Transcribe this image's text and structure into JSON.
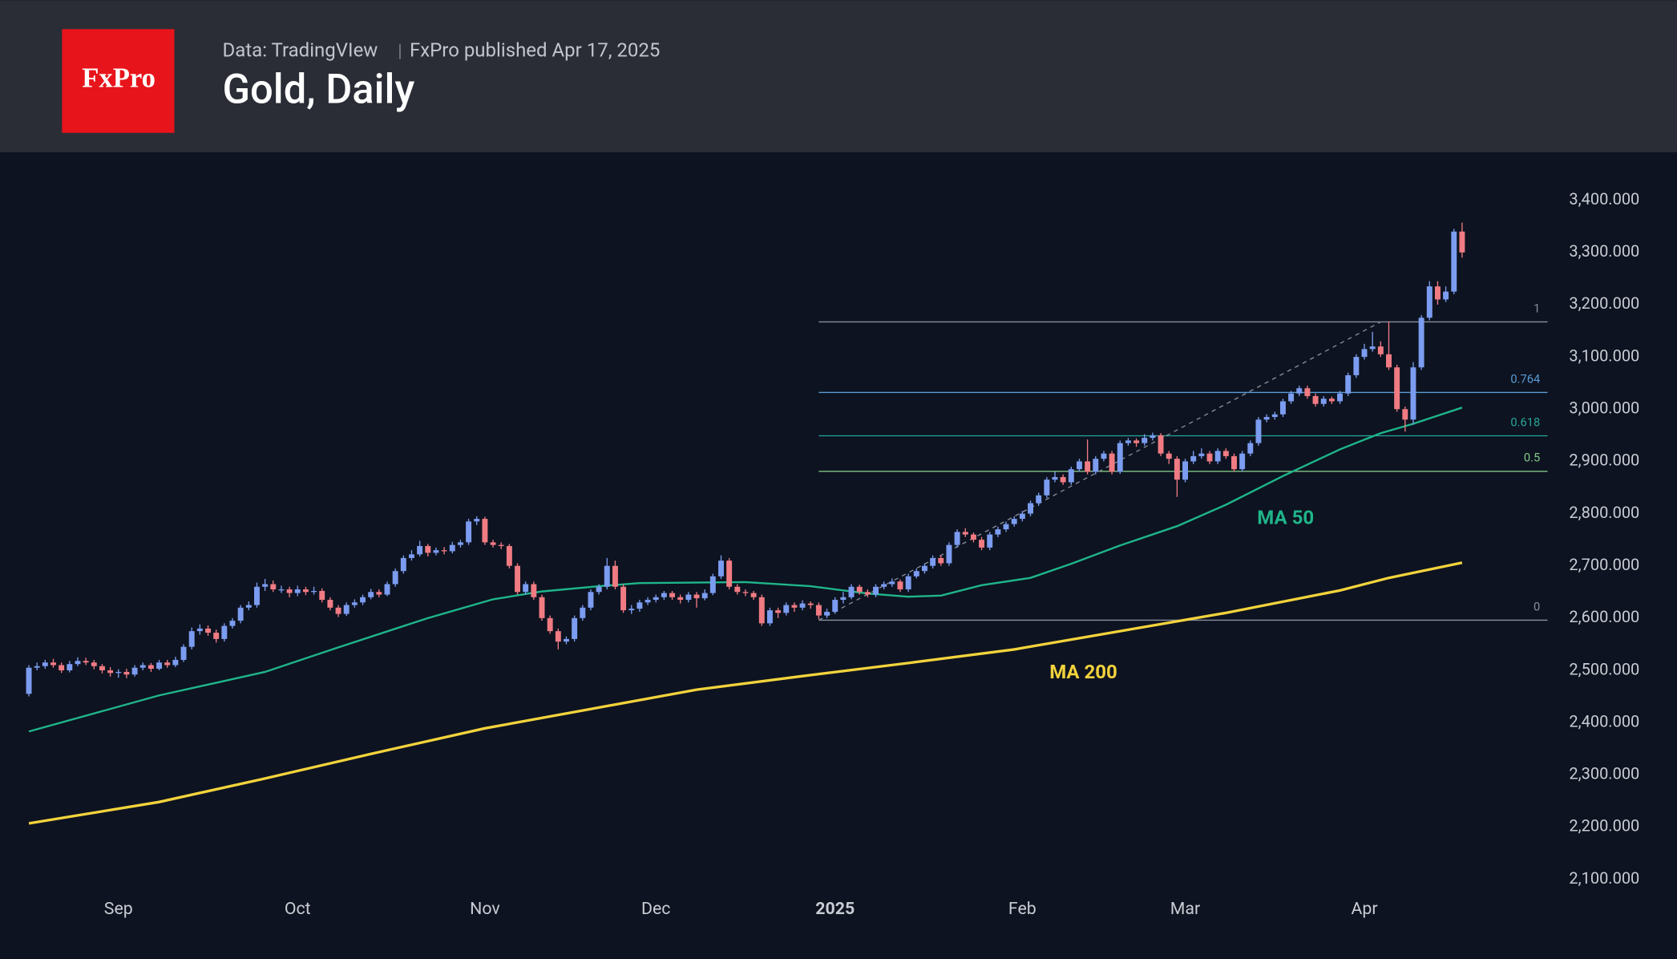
{
  "header": {
    "logo": "FxPro",
    "source": "Data: TradingVIew",
    "published": "FxPro published Apr 17, 2025",
    "title": "Gold, Daily"
  },
  "chart_data": {
    "type": "candlestick",
    "up_color": "#7b9cf0",
    "down_color": "#f07b83",
    "ylim": [
      2040,
      3492
    ],
    "yticks": [
      {
        "value": 2100,
        "label": "2,100.000"
      },
      {
        "value": 2200,
        "label": "2,200.000"
      },
      {
        "value": 2300,
        "label": "2,300.000"
      },
      {
        "value": 2400,
        "label": "2,400.000"
      },
      {
        "value": 2500,
        "label": "2,500.000"
      },
      {
        "value": 2600,
        "label": "2,600.000"
      },
      {
        "value": 2700,
        "label": "2,700.000"
      },
      {
        "value": 2800,
        "label": "2,800.000"
      },
      {
        "value": 2900,
        "label": "2,900.000"
      },
      {
        "value": 3000,
        "label": "3,000.000"
      },
      {
        "value": 3100,
        "label": "3,100.000"
      },
      {
        "value": 3200,
        "label": "3,200.000"
      },
      {
        "value": 3300,
        "label": "3,300.000"
      },
      {
        "value": 3400,
        "label": "3,400.000"
      }
    ],
    "xticks": [
      {
        "value": 11,
        "label": "Sep"
      },
      {
        "value": 33,
        "label": "Oct"
      },
      {
        "value": 56,
        "label": "Nov"
      },
      {
        "value": 77,
        "label": "Dec"
      },
      {
        "value": 99,
        "label": "2025"
      },
      {
        "value": 122,
        "label": "Feb"
      },
      {
        "value": 142,
        "label": "Mar"
      },
      {
        "value": 164,
        "label": "Apr"
      }
    ],
    "candles": [
      [
        2455,
        2510,
        2450,
        2505
      ],
      [
        2505,
        2515,
        2500,
        2508
      ],
      [
        2508,
        2520,
        2503,
        2515
      ],
      [
        2515,
        2522,
        2505,
        2510
      ],
      [
        2510,
        2515,
        2495,
        2500
      ],
      [
        2500,
        2518,
        2496,
        2512
      ],
      [
        2512,
        2525,
        2508,
        2518
      ],
      [
        2518,
        2524,
        2510,
        2515
      ],
      [
        2515,
        2520,
        2502,
        2508
      ],
      [
        2508,
        2512,
        2494,
        2500
      ],
      [
        2500,
        2506,
        2488,
        2495
      ],
      [
        2495,
        2502,
        2486,
        2497
      ],
      [
        2497,
        2503,
        2485,
        2492
      ],
      [
        2492,
        2510,
        2488,
        2505
      ],
      [
        2505,
        2515,
        2500,
        2510
      ],
      [
        2510,
        2514,
        2497,
        2503
      ],
      [
        2503,
        2520,
        2500,
        2515
      ],
      [
        2515,
        2520,
        2505,
        2510
      ],
      [
        2510,
        2526,
        2506,
        2520
      ],
      [
        2520,
        2550,
        2516,
        2545
      ],
      [
        2545,
        2582,
        2540,
        2575
      ],
      [
        2575,
        2588,
        2568,
        2580
      ],
      [
        2580,
        2586,
        2566,
        2572
      ],
      [
        2572,
        2578,
        2553,
        2560
      ],
      [
        2560,
        2590,
        2555,
        2585
      ],
      [
        2585,
        2600,
        2580,
        2595
      ],
      [
        2595,
        2625,
        2590,
        2620
      ],
      [
        2620,
        2632,
        2615,
        2625
      ],
      [
        2625,
        2668,
        2620,
        2660
      ],
      [
        2660,
        2675,
        2652,
        2665
      ],
      [
        2665,
        2672,
        2650,
        2655
      ],
      [
        2655,
        2662,
        2648,
        2655
      ],
      [
        2655,
        2660,
        2640,
        2648
      ],
      [
        2648,
        2662,
        2642,
        2655
      ],
      [
        2655,
        2660,
        2644,
        2650
      ],
      [
        2650,
        2660,
        2645,
        2652
      ],
      [
        2652,
        2657,
        2630,
        2635
      ],
      [
        2635,
        2640,
        2615,
        2620
      ],
      [
        2620,
        2625,
        2602,
        2608
      ],
      [
        2608,
        2630,
        2604,
        2625
      ],
      [
        2625,
        2636,
        2620,
        2630
      ],
      [
        2630,
        2645,
        2625,
        2640
      ],
      [
        2640,
        2656,
        2636,
        2650
      ],
      [
        2650,
        2655,
        2640,
        2645
      ],
      [
        2645,
        2670,
        2642,
        2665
      ],
      [
        2665,
        2695,
        2660,
        2690
      ],
      [
        2690,
        2720,
        2685,
        2715
      ],
      [
        2715,
        2730,
        2710,
        2722
      ],
      [
        2722,
        2748,
        2718,
        2738
      ],
      [
        2738,
        2742,
        2718,
        2725
      ],
      [
        2725,
        2735,
        2720,
        2730
      ],
      [
        2730,
        2736,
        2722,
        2728
      ],
      [
        2728,
        2746,
        2724,
        2740
      ],
      [
        2740,
        2750,
        2735,
        2745
      ],
      [
        2745,
        2790,
        2740,
        2785
      ],
      [
        2785,
        2795,
        2778,
        2790
      ],
      [
        2790,
        2794,
        2740,
        2745
      ],
      [
        2745,
        2750,
        2735,
        2740
      ],
      [
        2740,
        2745,
        2732,
        2738
      ],
      [
        2738,
        2742,
        2695,
        2700
      ],
      [
        2700,
        2705,
        2645,
        2650
      ],
      [
        2650,
        2670,
        2645,
        2665
      ],
      [
        2665,
        2670,
        2635,
        2640
      ],
      [
        2640,
        2645,
        2595,
        2600
      ],
      [
        2600,
        2605,
        2570,
        2575
      ],
      [
        2575,
        2580,
        2540,
        2555
      ],
      [
        2555,
        2565,
        2550,
        2560
      ],
      [
        2560,
        2605,
        2555,
        2600
      ],
      [
        2600,
        2625,
        2595,
        2620
      ],
      [
        2620,
        2655,
        2615,
        2650
      ],
      [
        2650,
        2665,
        2645,
        2660
      ],
      [
        2660,
        2715,
        2655,
        2700
      ],
      [
        2700,
        2710,
        2655,
        2660
      ],
      [
        2660,
        2665,
        2610,
        2615
      ],
      [
        2615,
        2625,
        2608,
        2618
      ],
      [
        2618,
        2635,
        2612,
        2630
      ],
      [
        2630,
        2640,
        2625,
        2635
      ],
      [
        2635,
        2645,
        2630,
        2640
      ],
      [
        2640,
        2652,
        2635,
        2648
      ],
      [
        2648,
        2652,
        2635,
        2640
      ],
      [
        2640,
        2645,
        2628,
        2635
      ],
      [
        2635,
        2650,
        2630,
        2645
      ],
      [
        2645,
        2650,
        2620,
        2638
      ],
      [
        2638,
        2655,
        2634,
        2648
      ],
      [
        2648,
        2685,
        2644,
        2680
      ],
      [
        2680,
        2720,
        2675,
        2710
      ],
      [
        2710,
        2715,
        2655,
        2660
      ],
      [
        2660,
        2665,
        2645,
        2650
      ],
      [
        2650,
        2655,
        2642,
        2648
      ],
      [
        2648,
        2652,
        2635,
        2640
      ],
      [
        2640,
        2645,
        2585,
        2590
      ],
      [
        2590,
        2620,
        2585,
        2615
      ],
      [
        2615,
        2620,
        2600,
        2610
      ],
      [
        2610,
        2630,
        2605,
        2625
      ],
      [
        2625,
        2630,
        2612,
        2620
      ],
      [
        2620,
        2634,
        2615,
        2628
      ],
      [
        2628,
        2632,
        2618,
        2625
      ],
      [
        2625,
        2630,
        2598,
        2605
      ],
      [
        2605,
        2618,
        2600,
        2612
      ],
      [
        2612,
        2640,
        2608,
        2635
      ],
      [
        2635,
        2650,
        2628,
        2640
      ],
      [
        2640,
        2665,
        2636,
        2660
      ],
      [
        2660,
        2664,
        2645,
        2650
      ],
      [
        2650,
        2655,
        2640,
        2645
      ],
      [
        2645,
        2665,
        2640,
        2660
      ],
      [
        2660,
        2670,
        2655,
        2665
      ],
      [
        2665,
        2676,
        2660,
        2670
      ],
      [
        2670,
        2674,
        2650,
        2655
      ],
      [
        2655,
        2685,
        2650,
        2680
      ],
      [
        2680,
        2695,
        2676,
        2690
      ],
      [
        2690,
        2705,
        2685,
        2700
      ],
      [
        2700,
        2720,
        2695,
        2715
      ],
      [
        2715,
        2720,
        2700,
        2705
      ],
      [
        2705,
        2745,
        2700,
        2740
      ],
      [
        2740,
        2770,
        2735,
        2765
      ],
      [
        2765,
        2772,
        2755,
        2760
      ],
      [
        2760,
        2764,
        2745,
        2750
      ],
      [
        2750,
        2755,
        2730,
        2735
      ],
      [
        2735,
        2765,
        2730,
        2760
      ],
      [
        2760,
        2775,
        2755,
        2770
      ],
      [
        2770,
        2785,
        2765,
        2780
      ],
      [
        2780,
        2795,
        2775,
        2790
      ],
      [
        2790,
        2805,
        2785,
        2800
      ],
      [
        2800,
        2825,
        2795,
        2820
      ],
      [
        2820,
        2840,
        2815,
        2835
      ],
      [
        2835,
        2870,
        2830,
        2865
      ],
      [
        2865,
        2880,
        2860,
        2870
      ],
      [
        2870,
        2875,
        2855,
        2860
      ],
      [
        2860,
        2890,
        2855,
        2885
      ],
      [
        2885,
        2905,
        2880,
        2900
      ],
      [
        2900,
        2942,
        2875,
        2880
      ],
      [
        2880,
        2910,
        2875,
        2905
      ],
      [
        2905,
        2920,
        2900,
        2915
      ],
      [
        2915,
        2920,
        2875,
        2880
      ],
      [
        2880,
        2940,
        2876,
        2935
      ],
      [
        2935,
        2945,
        2930,
        2940
      ],
      [
        2940,
        2944,
        2928,
        2935
      ],
      [
        2935,
        2952,
        2930,
        2945
      ],
      [
        2945,
        2955,
        2940,
        2950
      ],
      [
        2950,
        2954,
        2910,
        2915
      ],
      [
        2915,
        2920,
        2895,
        2905
      ],
      [
        2905,
        2910,
        2832,
        2865
      ],
      [
        2865,
        2905,
        2860,
        2900
      ],
      [
        2900,
        2920,
        2895,
        2910
      ],
      [
        2910,
        2925,
        2905,
        2915
      ],
      [
        2915,
        2920,
        2895,
        2900
      ],
      [
        2900,
        2925,
        2895,
        2920
      ],
      [
        2920,
        2925,
        2905,
        2910
      ],
      [
        2910,
        2915,
        2880,
        2885
      ],
      [
        2885,
        2920,
        2880,
        2915
      ],
      [
        2915,
        2940,
        2910,
        2935
      ],
      [
        2935,
        2985,
        2930,
        2980
      ],
      [
        2980,
        2990,
        2975,
        2985
      ],
      [
        2985,
        2995,
        2980,
        2990
      ],
      [
        2990,
        3020,
        2985,
        3015
      ],
      [
        3015,
        3035,
        3010,
        3030
      ],
      [
        3030,
        3045,
        3025,
        3040
      ],
      [
        3040,
        3045,
        3020,
        3025
      ],
      [
        3025,
        3030,
        3005,
        3010
      ],
      [
        3010,
        3025,
        3005,
        3020
      ],
      [
        3020,
        3024,
        3010,
        3015
      ],
      [
        3015,
        3035,
        3010,
        3030
      ],
      [
        3030,
        3070,
        3025,
        3065
      ],
      [
        3065,
        3105,
        3060,
        3100
      ],
      [
        3100,
        3125,
        3095,
        3115
      ],
      [
        3115,
        3148,
        3110,
        3120
      ],
      [
        3120,
        3130,
        3100,
        3105
      ],
      [
        3105,
        3168,
        3075,
        3080
      ],
      [
        3080,
        3085,
        2995,
        3000
      ],
      [
        3000,
        3005,
        2957,
        2980
      ],
      [
        2980,
        3090,
        2970,
        3080
      ],
      [
        3080,
        3180,
        3075,
        3175
      ],
      [
        3175,
        3245,
        3170,
        3235
      ],
      [
        3235,
        3245,
        3200,
        3210
      ],
      [
        3210,
        3235,
        3205,
        3225
      ],
      [
        3225,
        3345,
        3220,
        3340
      ],
      [
        3340,
        3357,
        3290,
        3300
      ]
    ],
    "series": [
      {
        "name": "MA 50",
        "color": "#1fb58a",
        "x": [
          0,
          16,
          29,
          38,
          49,
          57,
          63,
          70,
          75,
          88,
          96,
          103,
          108,
          112,
          117,
          123,
          128,
          134,
          141,
          147,
          154,
          161,
          166,
          170,
          176
        ],
        "values": [
          2383,
          2452,
          2497,
          2544,
          2600,
          2636,
          2651,
          2661,
          2667,
          2669,
          2661,
          2647,
          2641,
          2643,
          2663,
          2677,
          2704,
          2739,
          2776,
          2817,
          2872,
          2923,
          2954,
          2972,
          3003
        ]
      },
      {
        "name": "MA 200",
        "color": "#f2d33c",
        "x": [
          0,
          16,
          29,
          42,
          56,
          69,
          82,
          95,
          108,
          121,
          134,
          147,
          161,
          167,
          176
        ],
        "values": [
          2207,
          2248,
          2293,
          2340,
          2389,
          2426,
          2463,
          2489,
          2514,
          2540,
          2575,
          2610,
          2653,
          2677,
          2706
        ]
      }
    ],
    "fib_start": 97,
    "fib_levels": [
      {
        "label": "1",
        "value": 3167,
        "color": "#8a8f9c"
      },
      {
        "label": "0.764",
        "value": 3032,
        "color": "#5b9bd5"
      },
      {
        "label": "0.618",
        "value": 2949,
        "color": "#26a69a"
      },
      {
        "label": "0.5",
        "value": 2881,
        "color": "#81c784"
      },
      {
        "label": "0",
        "value": 2596,
        "color": "#8a8f9c"
      }
    ],
    "trend_line": {
      "x": [
        97,
        166
      ],
      "y": [
        2596,
        3167
      ]
    }
  }
}
